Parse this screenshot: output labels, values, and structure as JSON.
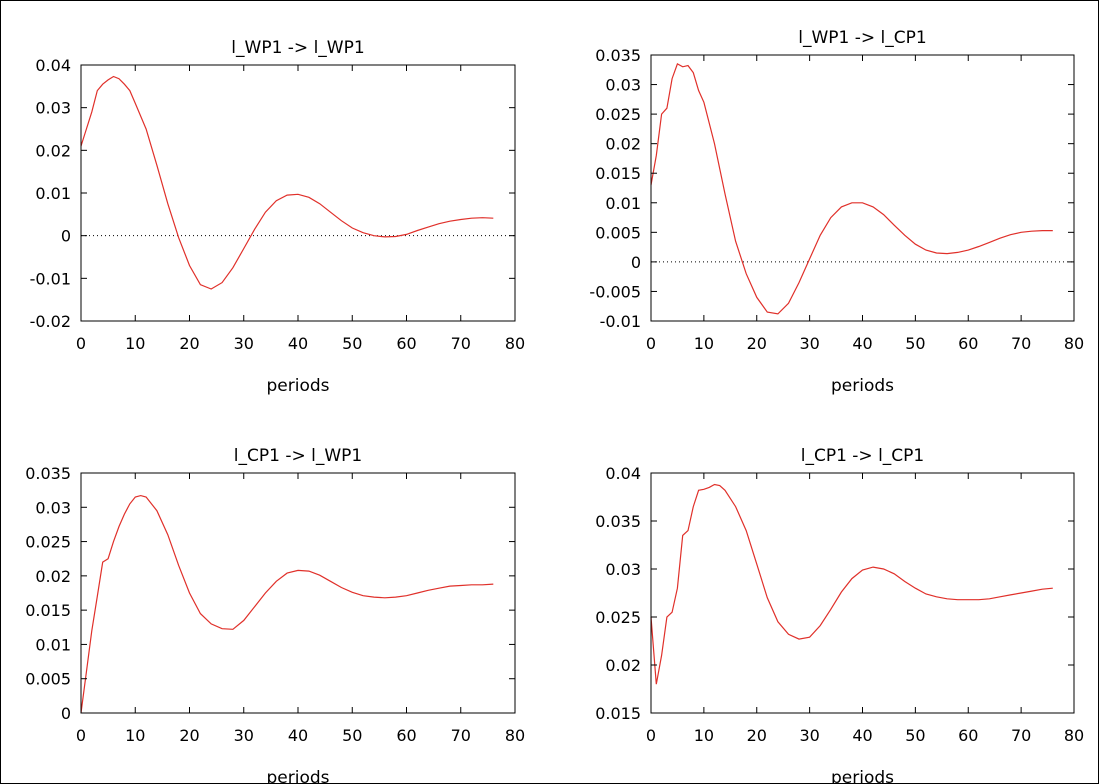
{
  "chart_data": [
    {
      "type": "line",
      "title": "l_WP1 -> l_WP1",
      "xlabel": "periods",
      "xlim": [
        0,
        80
      ],
      "ylim": [
        -0.02,
        0.04
      ],
      "xticks": [
        0,
        10,
        20,
        30,
        40,
        50,
        60,
        70,
        80
      ],
      "yticks": [
        -0.02,
        -0.01,
        0,
        0.01,
        0.02,
        0.03,
        0.04
      ],
      "ytick_labels": [
        "-0.02",
        "-0.01",
        "0",
        "0.01",
        "0.02",
        "0.03",
        "0.04"
      ],
      "zero_line": true,
      "color": "#e0302a",
      "series": [
        {
          "x": [
            0,
            1,
            2,
            3,
            4,
            5,
            6,
            7,
            8,
            9,
            10,
            12,
            14,
            16,
            18,
            20,
            22,
            24,
            26,
            28,
            30,
            32,
            34,
            36,
            38,
            40,
            42,
            44,
            46,
            48,
            50,
            52,
            54,
            56,
            58,
            60,
            62,
            64,
            66,
            68,
            70,
            72,
            74,
            76
          ],
          "y": [
            0.021,
            0.025,
            0.029,
            0.034,
            0.0355,
            0.0365,
            0.0373,
            0.0368,
            0.0355,
            0.034,
            0.031,
            0.025,
            0.0165,
            0.0075,
            -0.0005,
            -0.007,
            -0.0115,
            -0.0125,
            -0.011,
            -0.0075,
            -0.003,
            0.0015,
            0.0055,
            0.0082,
            0.0095,
            0.0097,
            0.009,
            0.0075,
            0.0055,
            0.0035,
            0.0018,
            0.0007,
            0.0,
            -0.0003,
            -0.0002,
            0.0003,
            0.0012,
            0.002,
            0.0028,
            0.0034,
            0.0038,
            0.0041,
            0.0042,
            0.0041
          ]
        }
      ]
    },
    {
      "type": "line",
      "title": "l_WP1 -> l_CP1",
      "xlabel": "periods",
      "xlim": [
        0,
        80
      ],
      "ylim": [
        -0.01,
        0.035
      ],
      "xticks": [
        0,
        10,
        20,
        30,
        40,
        50,
        60,
        70,
        80
      ],
      "yticks": [
        -0.01,
        -0.005,
        0,
        0.005,
        0.01,
        0.015,
        0.02,
        0.025,
        0.03,
        0.035
      ],
      "ytick_labels": [
        "-0.01",
        "-0.005",
        "0",
        "0.005",
        "0.01",
        "0.015",
        "0.02",
        "0.025",
        "0.03",
        "0.035"
      ],
      "zero_line": true,
      "color": "#e0302a",
      "series": [
        {
          "x": [
            0,
            1,
            2,
            3,
            4,
            5,
            6,
            7,
            8,
            9,
            10,
            12,
            14,
            16,
            18,
            20,
            22,
            24,
            26,
            28,
            30,
            32,
            34,
            36,
            38,
            40,
            42,
            44,
            46,
            48,
            50,
            52,
            54,
            56,
            58,
            60,
            62,
            64,
            66,
            68,
            70,
            72,
            74,
            76
          ],
          "y": [
            0.013,
            0.018,
            0.025,
            0.026,
            0.031,
            0.0335,
            0.033,
            0.0332,
            0.032,
            0.029,
            0.027,
            0.02,
            0.0115,
            0.0035,
            -0.002,
            -0.006,
            -0.0085,
            -0.0088,
            -0.007,
            -0.0035,
            0.0005,
            0.0045,
            0.0075,
            0.0093,
            0.01,
            0.01,
            0.0093,
            0.008,
            0.0062,
            0.0045,
            0.003,
            0.002,
            0.0015,
            0.0014,
            0.0016,
            0.002,
            0.0026,
            0.0033,
            0.004,
            0.0046,
            0.005,
            0.0052,
            0.0053,
            0.0053
          ]
        }
      ]
    },
    {
      "type": "line",
      "title": "l_CP1 -> l_WP1",
      "xlabel": "periods",
      "xlim": [
        0,
        80
      ],
      "ylim": [
        0,
        0.035
      ],
      "xticks": [
        0,
        10,
        20,
        30,
        40,
        50,
        60,
        70,
        80
      ],
      "yticks": [
        0,
        0.005,
        0.01,
        0.015,
        0.02,
        0.025,
        0.03,
        0.035
      ],
      "ytick_labels": [
        "0",
        "0.005",
        "0.01",
        "0.015",
        "0.02",
        "0.025",
        "0.03",
        "0.035"
      ],
      "zero_line": false,
      "color": "#e0302a",
      "series": [
        {
          "x": [
            0,
            1,
            2,
            3,
            4,
            5,
            6,
            7,
            8,
            9,
            10,
            11,
            12,
            14,
            16,
            18,
            20,
            22,
            24,
            26,
            28,
            30,
            32,
            34,
            36,
            38,
            40,
            42,
            44,
            46,
            48,
            50,
            52,
            54,
            56,
            58,
            60,
            62,
            64,
            66,
            68,
            70,
            72,
            74,
            76
          ],
          "y": [
            0.0,
            0.006,
            0.012,
            0.017,
            0.022,
            0.0225,
            0.025,
            0.0272,
            0.029,
            0.0305,
            0.0315,
            0.0317,
            0.0315,
            0.0295,
            0.026,
            0.0215,
            0.0175,
            0.0145,
            0.013,
            0.0123,
            0.0122,
            0.0135,
            0.0155,
            0.0175,
            0.0192,
            0.0204,
            0.0208,
            0.0207,
            0.0201,
            0.0192,
            0.0183,
            0.0176,
            0.0171,
            0.0169,
            0.0168,
            0.0169,
            0.0171,
            0.0175,
            0.0179,
            0.0182,
            0.0185,
            0.0186,
            0.0187,
            0.0187,
            0.0188
          ]
        }
      ]
    },
    {
      "type": "line",
      "title": "l_CP1 -> l_CP1",
      "xlabel": "periods",
      "xlim": [
        0,
        80
      ],
      "ylim": [
        0.015,
        0.04
      ],
      "xticks": [
        0,
        10,
        20,
        30,
        40,
        50,
        60,
        70,
        80
      ],
      "yticks": [
        0.015,
        0.02,
        0.025,
        0.03,
        0.035,
        0.04
      ],
      "ytick_labels": [
        "0.015",
        "0.02",
        "0.025",
        "0.03",
        "0.035",
        "0.04"
      ],
      "zero_line": false,
      "color": "#e0302a",
      "series": [
        {
          "x": [
            0,
            1,
            2,
            3,
            4,
            5,
            6,
            7,
            8,
            9,
            10,
            11,
            12,
            13,
            14,
            16,
            18,
            20,
            22,
            24,
            26,
            28,
            30,
            32,
            34,
            36,
            38,
            40,
            42,
            44,
            46,
            48,
            50,
            52,
            54,
            56,
            58,
            60,
            62,
            64,
            66,
            68,
            70,
            72,
            74,
            76
          ],
          "y": [
            0.025,
            0.018,
            0.021,
            0.025,
            0.0255,
            0.028,
            0.0335,
            0.034,
            0.0365,
            0.0382,
            0.0383,
            0.0385,
            0.0388,
            0.0387,
            0.0382,
            0.0365,
            0.034,
            0.0305,
            0.027,
            0.0245,
            0.0232,
            0.0227,
            0.0229,
            0.0241,
            0.0258,
            0.0276,
            0.029,
            0.0299,
            0.0302,
            0.03,
            0.0295,
            0.0287,
            0.028,
            0.0274,
            0.0271,
            0.0269,
            0.0268,
            0.0268,
            0.0268,
            0.0269,
            0.0271,
            0.0273,
            0.0275,
            0.0277,
            0.0279,
            0.028
          ]
        }
      ]
    }
  ]
}
